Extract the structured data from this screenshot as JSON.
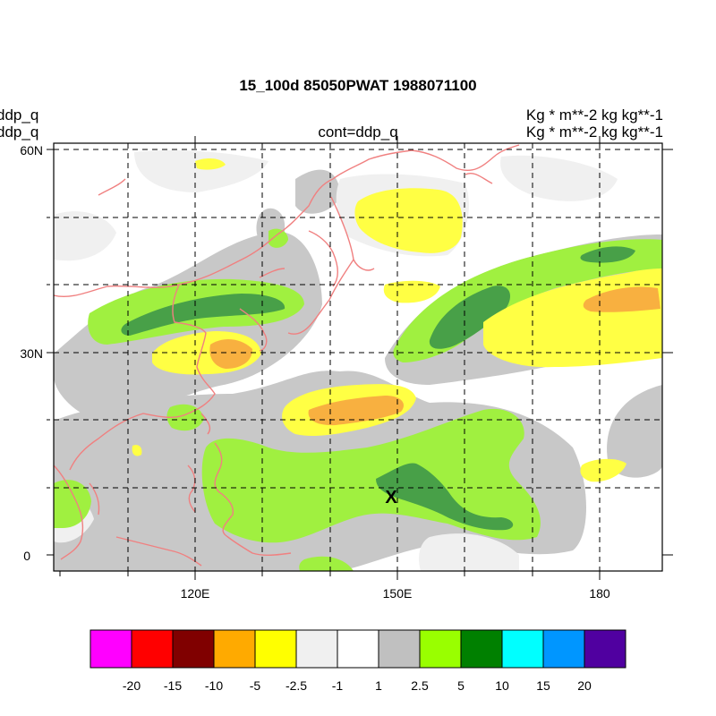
{
  "title": "15_100d 85050PWAT  1988071100",
  "left_labels": [
    "ddp_q",
    "ddp_q"
  ],
  "center_label": "cont=ddp_q",
  "right_labels": [
    "Kg  * m**-2 kg kg**-1",
    "Kg  * m**-2 kg kg**-1"
  ],
  "map": {
    "lon_range": [
      100,
      190
    ],
    "lat_range": [
      -2,
      61
    ],
    "lon_ticks": [
      "120E",
      "150E",
      "180"
    ],
    "lat_ticks": [
      "60N",
      "30N",
      "0"
    ],
    "marker": "X",
    "marker_lonlat": [
      149.5,
      8.7
    ]
  },
  "colorbar": {
    "colors": [
      "#ff00ff",
      "#ff0000",
      "#800000",
      "#ffaa00",
      "#ffff00",
      "#f0f0f0",
      "#ffffff",
      "#c0c0c0",
      "#99ff00",
      "#008000",
      "#00ffff",
      "#0096ff",
      "#5000a0"
    ],
    "labels": [
      "-20",
      "-15",
      "-10",
      "-5",
      "-2.5",
      "-1",
      "1",
      "2.5",
      "5",
      "10",
      "15",
      "20"
    ]
  },
  "colors": {
    "coast": "#f08080",
    "grey": "#c8c8c8",
    "light_grey": "#f0f0f0",
    "yellow": "#ffff44",
    "orange": "#f8b040",
    "light_green": "#a0f040",
    "dark_green": "#48a048"
  }
}
